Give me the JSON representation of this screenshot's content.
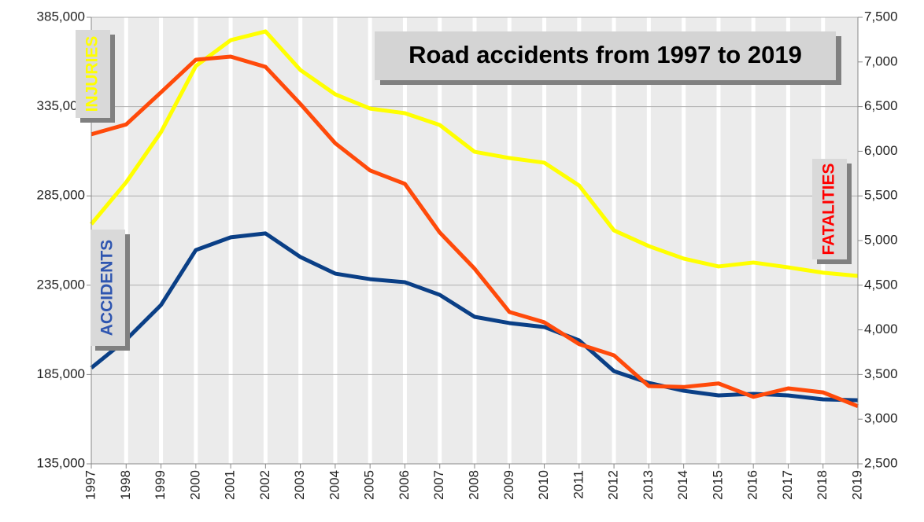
{
  "chart_data": {
    "type": "line",
    "title": "Road accidents from 1997 to 2019",
    "categories": [
      "1997",
      "1998",
      "1999",
      "2000",
      "2001",
      "2002",
      "2003",
      "2004",
      "2005",
      "2006",
      "2007",
      "2008",
      "2009",
      "2010",
      "2011",
      "2012",
      "2013",
      "2014",
      "2015",
      "2016",
      "2017",
      "2018",
      "2019"
    ],
    "series": [
      {
        "name": "INJURIES",
        "color": "#ffff00",
        "values": [
          269200,
          292600,
          320700,
          357700,
          372200,
          377100,
          355500,
          341900,
          333900,
          331300,
          324700,
          309700,
          306200,
          303600,
          290800,
          265700,
          256900,
          249900,
          245500,
          247700,
          245000,
          242000,
          240200
        ]
      },
      {
        "name": "ACCIDENTS",
        "color": "#0a3f86",
        "values": [
          188700,
          204500,
          223900,
          254700,
          261800,
          264000,
          250800,
          241500,
          238400,
          236700,
          229600,
          217300,
          213800,
          211600,
          204100,
          186900,
          180300,
          175900,
          173300,
          174200,
          173300,
          171100,
          170600
        ]
      },
      {
        "name": "FATALITIES",
        "color": "#ff4a0a",
        "axis": "y2",
        "values": [
          6190,
          6300,
          6660,
          7025,
          7060,
          6945,
          6530,
          6090,
          5785,
          5635,
          5090,
          4685,
          4200,
          4085,
          3840,
          3715,
          3370,
          3360,
          3400,
          3250,
          3345,
          3300,
          3145
        ]
      }
    ],
    "ylim": [
      135000,
      385000
    ],
    "yticks": [
      {
        "value": 135000,
        "label": "135,000"
      },
      {
        "value": 185000,
        "label": "185,000"
      },
      {
        "value": 235000,
        "label": "235,000"
      },
      {
        "value": 285000,
        "label": "285,000"
      },
      {
        "value": 335000,
        "label": "335,000"
      },
      {
        "value": 385000,
        "label": "385,000"
      }
    ],
    "y2lim": [
      2500,
      7500
    ],
    "y2ticks": [
      {
        "value": 2500,
        "label": "2,500"
      },
      {
        "value": 3000,
        "label": "3,000"
      },
      {
        "value": 3500,
        "label": "3,500"
      },
      {
        "value": 4000,
        "label": "4,000"
      },
      {
        "value": 4500,
        "label": "4,500"
      },
      {
        "value": 5000,
        "label": "5,000"
      },
      {
        "value": 5500,
        "label": "5,500"
      },
      {
        "value": 6000,
        "label": "6,000"
      },
      {
        "value": 6500,
        "label": "6,500"
      },
      {
        "value": 7000,
        "label": "7,000"
      },
      {
        "value": 7500,
        "label": "7,500"
      }
    ],
    "grid": true
  }
}
